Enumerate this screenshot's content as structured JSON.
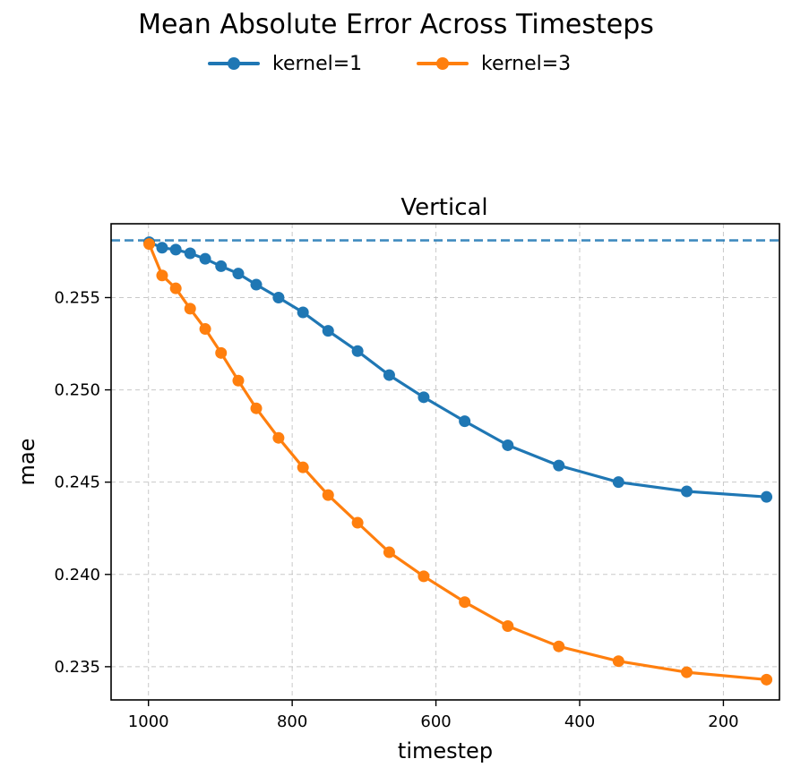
{
  "figure": {
    "title": "Mean Absolute Error Across Timesteps"
  },
  "legend": {
    "placement": "top-center",
    "items": [
      {
        "label": "kernel=1",
        "color": "#1f77b4"
      },
      {
        "label": "kernel=3",
        "color": "#ff7f0e"
      }
    ]
  },
  "chart_data": {
    "type": "line",
    "title": "Vertical",
    "xlabel": "timestep",
    "ylabel": "mae",
    "x_inverted": true,
    "xlim": [
      1052,
      122
    ],
    "ylim": [
      0.2332,
      0.259
    ],
    "grid": true,
    "xticks": [
      1000,
      800,
      600,
      400,
      200
    ],
    "xtick_labels": [
      "1000",
      "800",
      "600",
      "400",
      "200"
    ],
    "yticks": [
      0.235,
      0.24,
      0.245,
      0.25,
      0.255
    ],
    "ytick_labels": [
      "0.235",
      "0.240",
      "0.245",
      "0.250",
      "0.255"
    ],
    "reference_line": {
      "y": 0.2581,
      "color": "#1f77b4",
      "style": "dashed"
    },
    "series": [
      {
        "name": "kernel=1",
        "color": "#1f77b4",
        "x": [
          999,
          981,
          962,
          942,
          921,
          899,
          875,
          850,
          819,
          785,
          750,
          709,
          665,
          617,
          560,
          500,
          429,
          346,
          251,
          140
        ],
        "y": [
          0.258,
          0.2577,
          0.2576,
          0.2574,
          0.2571,
          0.2567,
          0.2563,
          0.2557,
          0.255,
          0.2542,
          0.2532,
          0.2521,
          0.2508,
          0.2496,
          0.2483,
          0.247,
          0.2459,
          0.245,
          0.2445,
          0.2442
        ]
      },
      {
        "name": "kernel=3",
        "color": "#ff7f0e",
        "x": [
          999,
          981,
          962,
          942,
          921,
          899,
          875,
          850,
          819,
          785,
          750,
          709,
          665,
          617,
          560,
          500,
          429,
          346,
          251,
          140
        ],
        "y": [
          0.2579,
          0.2562,
          0.2555,
          0.2544,
          0.2533,
          0.252,
          0.2505,
          0.249,
          0.2474,
          0.2458,
          0.2443,
          0.2428,
          0.2412,
          0.2399,
          0.2385,
          0.2372,
          0.2361,
          0.2353,
          0.2347,
          0.2343
        ]
      }
    ]
  }
}
